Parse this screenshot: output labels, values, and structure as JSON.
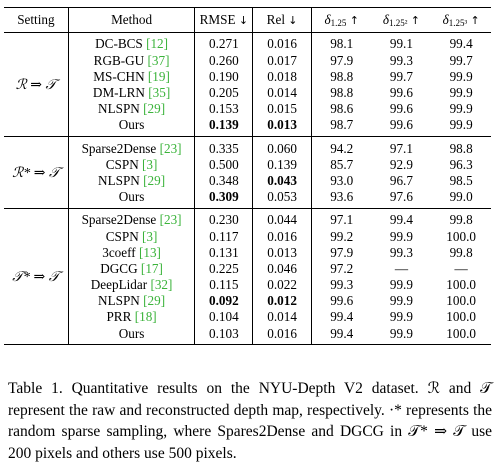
{
  "table": {
    "headers": {
      "setting": "Setting",
      "method": "Method",
      "rmse": "RMSE",
      "rel": "Rel",
      "down_arrow": "↓",
      "up_arrow": "↑",
      "d1": "δ",
      "d1_sub": "1.25",
      "d2": "δ",
      "d2_sub": "1.25²",
      "d3": "δ",
      "d3_sub": "1.25³"
    },
    "groups": [
      {
        "setting": "ℛ ⇒ 𝒯",
        "rows": [
          {
            "method": "DC-BCS",
            "cite": "[12]",
            "rmse": "0.271",
            "rel": "0.016",
            "d1": "98.1",
            "d2": "99.1",
            "d3": "99.4",
            "bold_rmse": false,
            "bold_rel": false
          },
          {
            "method": "RGB-GU",
            "cite": "[37]",
            "rmse": "0.260",
            "rel": "0.017",
            "d1": "97.9",
            "d2": "99.3",
            "d3": "99.7",
            "bold_rmse": false,
            "bold_rel": false
          },
          {
            "method": "MS-CHN",
            "cite": "[19]",
            "rmse": "0.190",
            "rel": "0.018",
            "d1": "98.8",
            "d2": "99.7",
            "d3": "99.9",
            "bold_rmse": false,
            "bold_rel": false
          },
          {
            "method": "DM-LRN",
            "cite": "[35]",
            "rmse": "0.205",
            "rel": "0.014",
            "d1": "98.8",
            "d2": "99.6",
            "d3": "99.9",
            "bold_rmse": false,
            "bold_rel": false
          },
          {
            "method": "NLSPN",
            "cite": "[29]",
            "rmse": "0.153",
            "rel": "0.015",
            "d1": "98.6",
            "d2": "99.6",
            "d3": "99.9",
            "bold_rmse": false,
            "bold_rel": false
          },
          {
            "method": "Ours",
            "cite": "",
            "rmse": "0.139",
            "rel": "0.013",
            "d1": "98.7",
            "d2": "99.6",
            "d3": "99.9",
            "bold_rmse": true,
            "bold_rel": true
          }
        ]
      },
      {
        "setting": "ℛ* ⇒ 𝒯",
        "rows": [
          {
            "method": "Sparse2Dense",
            "cite": "[23]",
            "rmse": "0.335",
            "rel": "0.060",
            "d1": "94.2",
            "d2": "97.1",
            "d3": "98.8",
            "bold_rmse": false,
            "bold_rel": false
          },
          {
            "method": "CSPN",
            "cite": "[3]",
            "rmse": "0.500",
            "rel": "0.139",
            "d1": "85.7",
            "d2": "92.9",
            "d3": "96.3",
            "bold_rmse": false,
            "bold_rel": false
          },
          {
            "method": "NLSPN",
            "cite": "[29]",
            "rmse": "0.348",
            "rel": "0.043",
            "d1": "93.0",
            "d2": "96.7",
            "d3": "98.5",
            "bold_rmse": false,
            "bold_rel": true
          },
          {
            "method": "Ours",
            "cite": "",
            "rmse": "0.309",
            "rel": "0.053",
            "d1": "93.6",
            "d2": "97.6",
            "d3": "99.0",
            "bold_rmse": true,
            "bold_rel": false
          }
        ]
      },
      {
        "setting": "𝒯* ⇒ 𝒯",
        "rows": [
          {
            "method": "Sparse2Dense",
            "cite": "[23]",
            "rmse": "0.230",
            "rel": "0.044",
            "d1": "97.1",
            "d2": "99.4",
            "d3": "99.8",
            "bold_rmse": false,
            "bold_rel": false
          },
          {
            "method": "CSPN",
            "cite": "[3]",
            "rmse": "0.117",
            "rel": "0.016",
            "d1": "99.2",
            "d2": "99.9",
            "d3": "100.0",
            "bold_rmse": false,
            "bold_rel": false
          },
          {
            "method": "3coeff",
            "cite": "[13]",
            "rmse": "0.131",
            "rel": "0.013",
            "d1": "97.9",
            "d2": "99.3",
            "d3": "99.8",
            "bold_rmse": false,
            "bold_rel": false
          },
          {
            "method": "DGCG",
            "cite": "[17]",
            "rmse": "0.225",
            "rel": "0.046",
            "d1": "97.2",
            "d2": "—",
            "d3": "—",
            "bold_rmse": false,
            "bold_rel": false
          },
          {
            "method": "DeepLidar",
            "cite": "[32]",
            "rmse": "0.115",
            "rel": "0.022",
            "d1": "99.3",
            "d2": "99.9",
            "d3": "100.0",
            "bold_rmse": false,
            "bold_rel": false
          },
          {
            "method": "NLSPN",
            "cite": "[29]",
            "rmse": "0.092",
            "rel": "0.012",
            "d1": "99.6",
            "d2": "99.9",
            "d3": "100.0",
            "bold_rmse": true,
            "bold_rel": true
          },
          {
            "method": "PRR",
            "cite": "[18]",
            "rmse": "0.104",
            "rel": "0.014",
            "d1": "99.4",
            "d2": "99.9",
            "d3": "100.0",
            "bold_rmse": false,
            "bold_rel": false
          },
          {
            "method": "Ours",
            "cite": "",
            "rmse": "0.103",
            "rel": "0.016",
            "d1": "99.4",
            "d2": "99.9",
            "d3": "100.0",
            "bold_rmse": false,
            "bold_rel": false
          }
        ]
      }
    ]
  },
  "caption": {
    "text": "Table 1. Quantitative results on the NYU-Depth V2 dataset. ℛ and 𝒯 represent the raw and reconstructed depth map, respectively. ·* represents the random sparse sampling, where Spares2Dense and DGCG in 𝒯* ⇒ 𝒯 use 200 pixels and others use 500 pixels."
  }
}
